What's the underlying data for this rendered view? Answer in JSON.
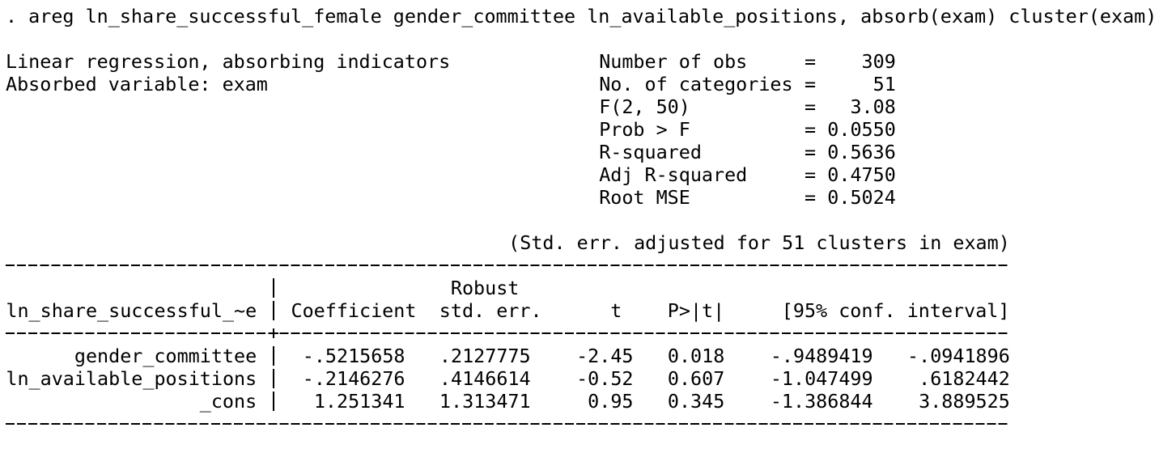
{
  "command": ". areg ln_share_successful_female gender_committee ln_available_positions, absorb(exam) cluster(exam)",
  "header": {
    "title": "Linear regression, absorbing indicators",
    "absorbed": "Absorbed variable: exam"
  },
  "stats": {
    "equals": "=",
    "rows": [
      {
        "label": "Number of obs",
        "value": "309"
      },
      {
        "label": "No. of categories",
        "value": "51"
      },
      {
        "label": "F(2, 50)",
        "value": "3.08"
      },
      {
        "label": "Prob > F",
        "value": "0.0550"
      },
      {
        "label": "R-squared",
        "value": "0.5636"
      },
      {
        "label": "Adj R-squared",
        "value": "0.4750"
      },
      {
        "label": "Root MSE",
        "value": "0.5024"
      }
    ]
  },
  "note": "(Std. err. adjusted for 51 clusters in exam)",
  "table": {
    "depvar": "ln_share_successful_~e",
    "robust": "Robust",
    "columns": [
      "Coefficient",
      "std. err.",
      "t",
      "P>|t|",
      "[95% conf. interval]"
    ],
    "rows": [
      {
        "name": "gender_committee",
        "values": [
          "-.5215658",
          ".2127775",
          "-2.45",
          "0.018",
          "-.9489419",
          "-.0941896"
        ]
      },
      {
        "name": "ln_available_positions",
        "values": [
          "-.2146276",
          ".4146614",
          "-0.52",
          "0.607",
          "-1.047499",
          ".6182442"
        ]
      },
      {
        "name": "_cons",
        "values": [
          "1.251341",
          "1.313471",
          "0.95",
          "0.345",
          "-1.386844",
          "3.889525"
        ]
      }
    ]
  }
}
